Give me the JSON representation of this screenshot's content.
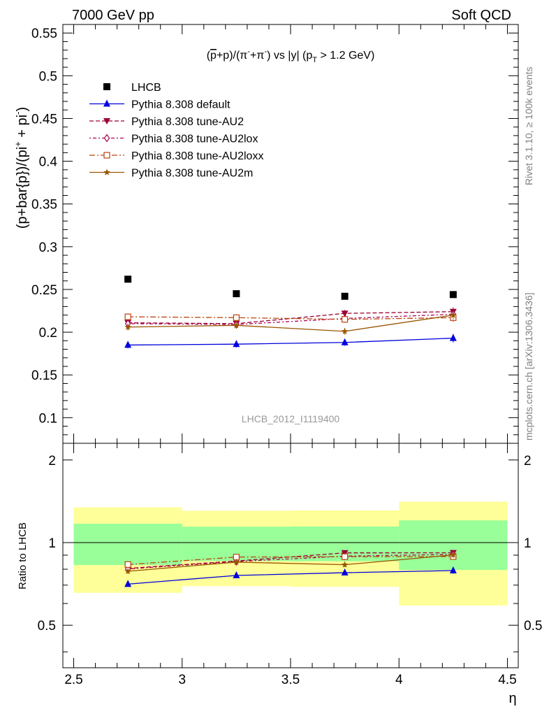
{
  "header": {
    "left": "7000 GeV pp",
    "right": "Soft QCD"
  },
  "side_labels": {
    "rivet": "Rivet 3.1.10, ≥ 100k events",
    "mcplots": "mcplots.cern.ch [arXiv:1306.3436]"
  },
  "chart_data": {
    "type": "scatter",
    "title": "(p̅+p)/(π⁻+π⁻) vs |y| (p_T > 1.2 GeV)",
    "title_parts": {
      "a": "(",
      "pbar": "p",
      "b": "+p)/(π",
      "sup1": "-",
      "c": "+π",
      "sup2": "-",
      "d": ") vs |y| (p",
      "sub": "T",
      "e": " > 1.2 GeV)"
    },
    "watermark": "LHCB_2012_I1119400",
    "xlabel": "η",
    "ylabel": "(p+bar{p})/(pi⁺ + pi⁻)",
    "ylabel_parts": {
      "a": "(p+bar{p})/(pi",
      "sup1": "+",
      "b": " + pi",
      "sup2": "-",
      "c": ")"
    },
    "ratio_ylabel": "Ratio to LHCB",
    "xlim": [
      2.45,
      4.55
    ],
    "ylim": [
      0.07,
      0.56
    ],
    "ratio_ylim": [
      0.35,
      2.3
    ],
    "x_ticks": [
      2.5,
      3,
      3.5,
      4,
      4.5
    ],
    "x_tick_labels": [
      "2.5",
      "3",
      "3.5",
      "4",
      "4.5"
    ],
    "y_ticks": [
      0.1,
      0.15,
      0.2,
      0.25,
      0.3,
      0.35,
      0.4,
      0.45,
      0.5,
      0.55
    ],
    "y_tick_labels": [
      "0.1",
      "0.15",
      "0.2",
      "0.25",
      "0.3",
      "0.35",
      "0.4",
      "0.45",
      "0.5",
      "0.55"
    ],
    "ratio_ticks": [
      0.5,
      1,
      2
    ],
    "ratio_tick_labels": [
      "0.5",
      "1",
      "2"
    ],
    "bins": [
      [
        2.5,
        3.0
      ],
      [
        3.0,
        3.5
      ],
      [
        3.5,
        4.0
      ],
      [
        4.0,
        4.5
      ]
    ],
    "x": [
      2.75,
      3.25,
      3.75,
      4.25
    ],
    "data": {
      "name": "LHCB",
      "values": [
        0.262,
        0.245,
        0.242,
        0.244
      ],
      "band_green": [
        0.045,
        0.035,
        0.035,
        0.05
      ],
      "band_yellow": [
        0.09,
        0.075,
        0.075,
        0.1
      ]
    },
    "series": [
      {
        "name": "Pythia 8.308 default",
        "color": "#0000dd",
        "marker": "triangle-up",
        "dash": "",
        "values": [
          0.185,
          0.186,
          0.188,
          0.193
        ],
        "err": [
          0.004,
          0.004,
          0.004,
          0.005
        ]
      },
      {
        "name": "Pythia 8.308 tune-AU2",
        "color": "#990033",
        "marker": "triangle-down",
        "dash": "6,3",
        "values": [
          0.211,
          0.21,
          0.222,
          0.224
        ],
        "err": [
          0.004,
          0.004,
          0.004,
          0.005
        ]
      },
      {
        "name": "Pythia 8.308 tune-AU2lox",
        "color": "#aa0055",
        "marker": "diamond",
        "dash": "2,3,5,3",
        "values": [
          0.21,
          0.209,
          0.216,
          0.221
        ],
        "err": [
          0.004,
          0.004,
          0.004,
          0.005
        ]
      },
      {
        "name": "Pythia 8.308 tune-AU2loxx",
        "color": "#bb4411",
        "marker": "square-open",
        "dash": "8,3,2,3",
        "values": [
          0.218,
          0.217,
          0.215,
          0.217
        ],
        "err": [
          0.004,
          0.004,
          0.004,
          0.005
        ]
      },
      {
        "name": "Pythia 8.308 tune-AU2m",
        "color": "#995500",
        "marker": "star",
        "dash": "",
        "values": [
          0.206,
          0.208,
          0.201,
          0.22
        ],
        "err": [
          0.004,
          0.004,
          0.004,
          0.005
        ]
      }
    ],
    "legend_position": "top-left",
    "colors": {
      "band_green": "#99ff99",
      "band_yellow": "#ffff99",
      "data": "#000000"
    }
  }
}
